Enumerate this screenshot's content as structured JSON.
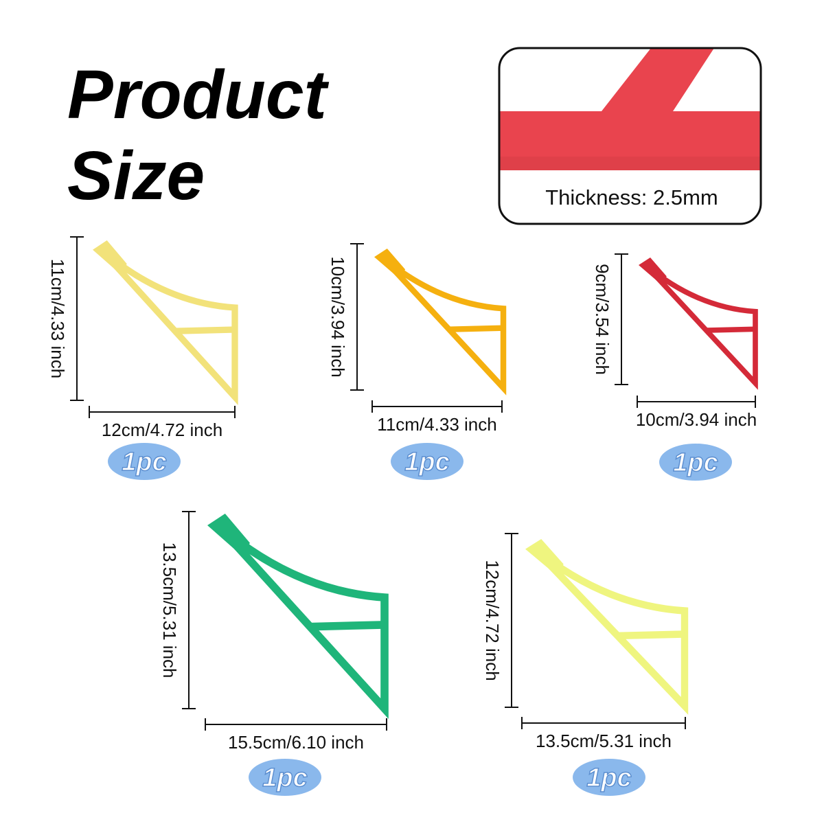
{
  "header": {
    "title_line1": "Product",
    "title_line2": "Size"
  },
  "thickness": {
    "label": "Thickness: 2.5mm"
  },
  "items": [
    {
      "height": "11cm/4.33 inch",
      "width": "12cm/4.72 inch",
      "quantity": "1pc",
      "color": "#f2e27a"
    },
    {
      "height": "10cm/3.94 inch",
      "width": "11cm/4.33 inch",
      "quantity": "1pc",
      "color": "#f5b00f"
    },
    {
      "height": "9cm/3.54 inch",
      "width": "10cm/3.94 inch",
      "quantity": "1pc",
      "color": "#d42a38"
    },
    {
      "height": "13.5cm/5.31 inch",
      "width": "15.5cm/6.10 inch",
      "quantity": "1pc",
      "color": "#1fb57a"
    },
    {
      "height": "12cm/4.72 inch",
      "width": "13.5cm/5.31 inch",
      "quantity": "1pc",
      "color": "#eff57f"
    }
  ]
}
